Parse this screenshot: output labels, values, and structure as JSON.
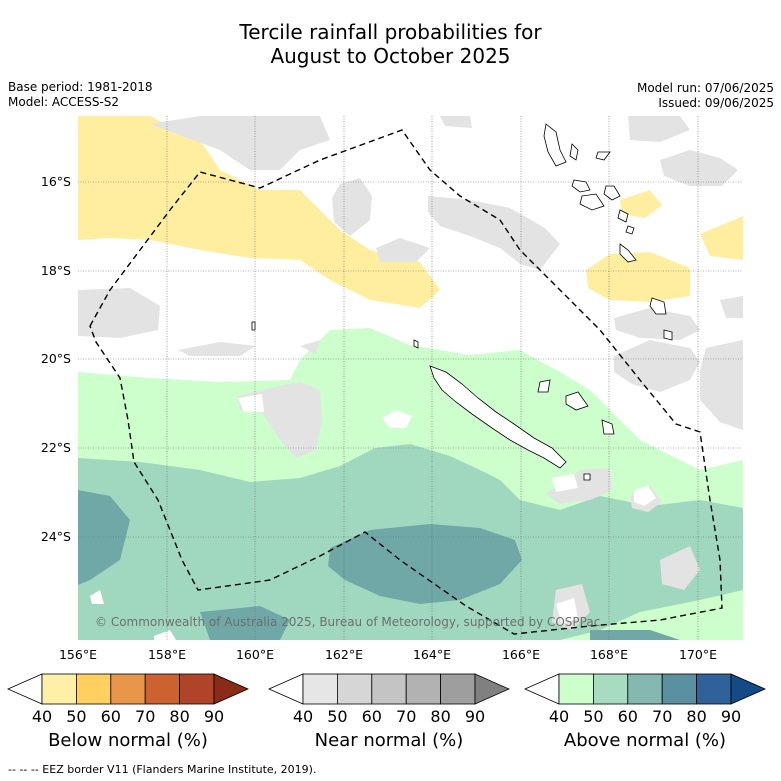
{
  "title_line1": "Tercile rainfall probabilities for",
  "title_line2": "August to October 2025",
  "meta_left": [
    "Base period: 1981-2018",
    "Model: ACCESS-S2"
  ],
  "meta_right": [
    "Model run: 07/06/2025",
    "Issued: 09/06/2025"
  ],
  "copyright": "© Commonwealth of Australia 2025, Bureau of Meteorology, supported by COSPPac",
  "lon_labels": [
    "156°E",
    "158°E",
    "160°E",
    "162°E",
    "164°E",
    "166°E",
    "168°E",
    "170°E"
  ],
  "lat_labels": [
    "16°S",
    "18°S",
    "20°S",
    "22°S",
    "24°S"
  ],
  "colorbars": [
    {
      "title": "Below normal (%)",
      "ticks": [
        "40",
        "50",
        "60",
        "70",
        "80",
        "90"
      ],
      "colors": [
        "#ffffff",
        "#fff0a8",
        "#ffd060",
        "#e8964a",
        "#cc6230",
        "#b04428",
        "#8a2a18"
      ]
    },
    {
      "title": "Near normal (%)",
      "ticks": [
        "40",
        "50",
        "60",
        "70",
        "80",
        "90"
      ],
      "colors": [
        "#ffffff",
        "#e6e6e6",
        "#d6d6d6",
        "#c4c4c4",
        "#b2b2b2",
        "#9e9e9e",
        "#808080"
      ]
    },
    {
      "title": "Above normal (%)",
      "ticks": [
        "40",
        "50",
        "60",
        "70",
        "80",
        "90"
      ],
      "colors": [
        "#ffffff",
        "#ccffcc",
        "#a8dcc0",
        "#84b8b0",
        "#5a90a0",
        "#2e6298",
        "#144a86"
      ]
    }
  ],
  "footnote": "--  --  -- EEZ border V11 (Flanders Marine Institute, 2019)."
}
